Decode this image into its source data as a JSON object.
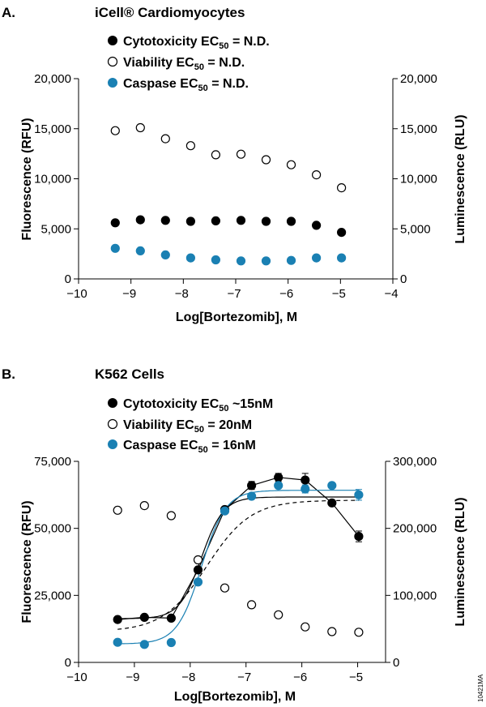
{
  "figure_code": "10421MA",
  "colors": {
    "black": "#000000",
    "blue": "#1a80b3",
    "open": "#ffffff"
  },
  "chart_data": [
    {
      "panel": "A.",
      "type": "scatter",
      "title": "iCell® Cardiomyocytes",
      "xlabel": "Log[Bortezomib], M",
      "ylabel_left": "Fluorescence (RFU)",
      "ylabel_right": "Luminescence (RLU)",
      "xlim": [
        -10,
        -4
      ],
      "ylim_left": [
        0,
        20000
      ],
      "ylim_right": [
        0,
        20000
      ],
      "x_ticks": [
        "−10",
        "−9",
        "−8",
        "−7",
        "−6",
        "−5",
        "−4"
      ],
      "y_ticks_left": [
        "0",
        "5,000",
        "10,000",
        "15,000",
        "20,000"
      ],
      "y_ticks_right": [
        "0",
        "5,000",
        "10,000",
        "15,000",
        "20,000"
      ],
      "grid": false,
      "legend": [
        {
          "pre": "Cytotoxicity EC",
          "sub": "50",
          "post": " = N.D.",
          "marker": "filled-black"
        },
        {
          "pre": "Viability EC",
          "sub": "50",
          "post": " = N.D.",
          "marker": "open"
        },
        {
          "pre": "Caspase EC",
          "sub": "50",
          "post": " = N.D.",
          "marker": "filled-blue"
        }
      ],
      "series": [
        {
          "name": "Cytotoxicity",
          "axis": "left",
          "marker": "filled-black",
          "x": [
            -9.3,
            -8.82,
            -8.34,
            -7.86,
            -7.38,
            -6.9,
            -6.42,
            -5.94,
            -5.46,
            -4.98
          ],
          "y": [
            5600,
            5900,
            5850,
            5750,
            5800,
            5850,
            5750,
            5750,
            5350,
            4650
          ]
        },
        {
          "name": "Viability",
          "axis": "right",
          "marker": "open",
          "x": [
            -9.3,
            -8.82,
            -8.34,
            -7.86,
            -7.38,
            -6.9,
            -6.42,
            -5.94,
            -5.46,
            -4.98
          ],
          "y": [
            14800,
            15100,
            14000,
            13300,
            12400,
            12450,
            11900,
            11400,
            10400,
            9100
          ]
        },
        {
          "name": "Caspase",
          "axis": "left",
          "marker": "filled-blue",
          "x": [
            -9.3,
            -8.82,
            -8.34,
            -7.86,
            -7.38,
            -6.9,
            -6.42,
            -5.94,
            -5.46,
            -4.98
          ],
          "y": [
            3050,
            2800,
            2400,
            2100,
            1900,
            1800,
            1800,
            1850,
            2100,
            2100
          ]
        }
      ]
    },
    {
      "panel": "B.",
      "type": "scatter",
      "title": "K562 Cells",
      "xlabel": "Log[Bortezomib], M",
      "ylabel_left": "Fluorescence (RFU)",
      "ylabel_right": "Luminescence (RLU)",
      "xlim": [
        -10,
        -4.5
      ],
      "ylim_left": [
        0,
        75000
      ],
      "ylim_right": [
        0,
        300000
      ],
      "x_ticks": [
        "−10",
        "−9",
        "−8",
        "−7",
        "−6",
        "−5"
      ],
      "y_ticks_left": [
        "0",
        "25,000",
        "50,000",
        "75,000"
      ],
      "y_ticks_right": [
        "0",
        "100,000",
        "200,000",
        "300,000"
      ],
      "grid": false,
      "legend": [
        {
          "pre": "Cytotoxicity EC",
          "sub": "50",
          "post": " ~15nM",
          "marker": "filled-black"
        },
        {
          "pre": "Viability EC",
          "sub": "50",
          "post": " = 20nM",
          "marker": "open"
        },
        {
          "pre": "Caspase EC",
          "sub": "50",
          "post": " = 16nM",
          "marker": "filled-blue"
        }
      ],
      "series": [
        {
          "name": "Cytotoxicity",
          "axis": "left",
          "marker": "filled-black",
          "connect": "line",
          "x": [
            -9.3,
            -8.82,
            -8.34,
            -7.86,
            -7.38,
            -6.9,
            -6.42,
            -5.94,
            -5.46,
            -4.98
          ],
          "y": [
            16000,
            16800,
            16500,
            34500,
            57000,
            66000,
            69000,
            68000,
            59500,
            47000
          ],
          "err": [
            0,
            0,
            0,
            0,
            0,
            1500,
            1500,
            2500,
            0,
            2000
          ]
        },
        {
          "name": "Viability",
          "axis": "right",
          "marker": "open",
          "connect": "dashed-fit",
          "x": [
            -9.3,
            -8.82,
            -8.34,
            -7.86,
            -7.38,
            -6.9,
            -6.42,
            -5.94,
            -5.46,
            -4.98
          ],
          "y": [
            227000,
            234000,
            219000,
            153000,
            111000,
            86000,
            71000,
            53000,
            46000,
            45000
          ],
          "fit": {
            "bottom": 46000,
            "top": 242000,
            "logEC50": -7.7,
            "hill": 1.1
          }
        },
        {
          "name": "Caspase",
          "axis": "left",
          "marker": "filled-blue",
          "connect": "solid-fit",
          "x": [
            -9.3,
            -8.82,
            -8.34,
            -7.86,
            -7.38,
            -6.9,
            -6.42,
            -5.94,
            -5.46,
            -4.98
          ],
          "y": [
            7500,
            6700,
            7400,
            30000,
            56500,
            62000,
            66000,
            64700,
            66000,
            62500
          ],
          "err": [
            0,
            0,
            0,
            0,
            0,
            0,
            1000,
            1500,
            0,
            2000
          ],
          "fit": {
            "bottom": 6900,
            "top": 64200,
            "logEC50": -7.8,
            "hill": 2.0
          }
        },
        {
          "name": "Cytotoxicity",
          "axis": "left",
          "role": "fit-only",
          "connect": "solid-fit",
          "fit": {
            "bottom": 16300,
            "top": 61700,
            "logEC50": -7.8,
            "hill": 2.2
          }
        }
      ]
    }
  ]
}
